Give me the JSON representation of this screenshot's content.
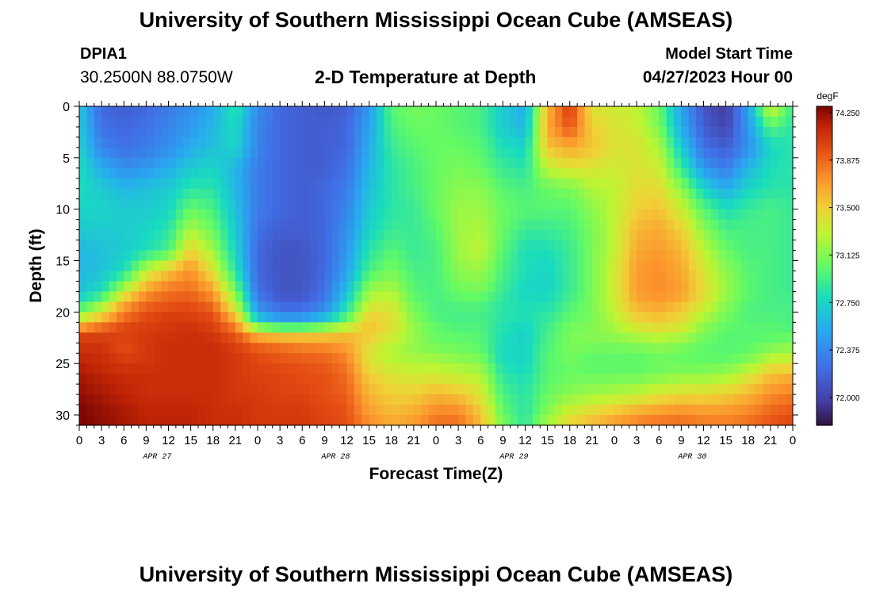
{
  "header": {
    "title": "University of Southern Mississippi Ocean Cube (AMSEAS)",
    "station_id": "DPIA1",
    "station_coords": "30.2500N  88.0750W",
    "plot_title": "2-D Temperature at Depth",
    "model_start_label": "Model Start Time",
    "model_start_value": "04/27/2023 Hour 00"
  },
  "footer": {
    "title": "University of Southern Mississippi Ocean Cube (AMSEAS)"
  },
  "chart_data": {
    "type": "heatmap",
    "title": "2-D Temperature at Depth",
    "xlabel": "Forecast Time(Z)",
    "ylabel": "Depth (ft)",
    "x_hours_range": [
      0,
      96
    ],
    "y_depth_range": [
      0,
      31
    ],
    "x_tick_labels": [
      "0",
      "3",
      "6",
      "9",
      "12",
      "15",
      "18",
      "21",
      "0",
      "3",
      "6",
      "9",
      "12",
      "15",
      "18",
      "21",
      "0",
      "3",
      "6",
      "9",
      "12",
      "15",
      "18",
      "21",
      "0",
      "3",
      "6",
      "9",
      "12",
      "15",
      "18",
      "21",
      "0"
    ],
    "date_labels": [
      {
        "label": "APR 27",
        "hour": 10.5
      },
      {
        "label": "APR 28",
        "hour": 34.5
      },
      {
        "label": "APR 29",
        "hour": 58.5
      },
      {
        "label": "APR 30",
        "hour": 82.5
      }
    ],
    "y_ticks": [
      0,
      5,
      10,
      15,
      20,
      25,
      30
    ],
    "colorbar": {
      "unit": "degF",
      "range": [
        71.78,
        74.3
      ],
      "ticks": [
        74.25,
        73.875,
        73.5,
        73.125,
        72.75,
        72.375,
        72.0
      ],
      "tick_labels": [
        "74.250",
        "73.875",
        "73.500",
        "73.125",
        "72.750",
        "72.375",
        "72.000"
      ]
    },
    "depths_ft": [
      0,
      2,
      4,
      6,
      8,
      10,
      12,
      14,
      16,
      18,
      19,
      20,
      21,
      22,
      23,
      24,
      25,
      26,
      28,
      30,
      31
    ],
    "hours": [
      0,
      3,
      6,
      9,
      12,
      15,
      18,
      21,
      24,
      27,
      30,
      33,
      36,
      39,
      42,
      45,
      48,
      51,
      54,
      57,
      60,
      63,
      66,
      69,
      72,
      75,
      78,
      81,
      84,
      87,
      90,
      93,
      96
    ],
    "temperature_degF": [
      [
        72.7,
        72.2,
        72.15,
        72.2,
        72.3,
        72.4,
        72.55,
        72.85,
        72.4,
        72.2,
        72.15,
        72.1,
        72.15,
        72.45,
        73.0,
        73.1,
        73.05,
        73.0,
        72.95,
        72.7,
        72.55,
        73.6,
        74.05,
        73.4,
        73.35,
        73.3,
        73.05,
        72.5,
        72.1,
        71.95,
        72.5,
        73.4,
        72.9
      ],
      [
        72.7,
        72.25,
        72.2,
        72.25,
        72.35,
        72.45,
        72.6,
        72.8,
        72.35,
        72.2,
        72.15,
        72.15,
        72.2,
        72.5,
        72.95,
        73.05,
        73.05,
        73.0,
        72.95,
        72.7,
        72.6,
        73.65,
        73.95,
        73.5,
        73.4,
        73.35,
        73.1,
        72.55,
        72.15,
        72.0,
        72.45,
        73.0,
        72.85
      ],
      [
        72.75,
        72.35,
        72.25,
        72.3,
        72.4,
        72.55,
        72.65,
        72.75,
        72.35,
        72.2,
        72.15,
        72.15,
        72.2,
        72.55,
        72.9,
        73.0,
        73.05,
        73.05,
        73.0,
        72.8,
        72.75,
        73.55,
        73.65,
        73.55,
        73.4,
        73.4,
        73.25,
        72.7,
        72.25,
        72.15,
        72.4,
        72.75,
        72.85
      ],
      [
        72.8,
        72.55,
        72.4,
        72.45,
        72.55,
        72.7,
        72.75,
        72.6,
        72.3,
        72.2,
        72.15,
        72.15,
        72.25,
        72.6,
        72.85,
        72.95,
        73.05,
        73.1,
        73.05,
        72.9,
        72.85,
        73.3,
        73.4,
        73.4,
        73.35,
        73.4,
        73.35,
        72.9,
        72.45,
        72.3,
        72.6,
        72.8,
        72.85
      ],
      [
        72.8,
        72.7,
        72.6,
        72.65,
        72.7,
        72.85,
        72.85,
        72.6,
        72.3,
        72.2,
        72.15,
        72.2,
        72.3,
        72.65,
        72.85,
        72.95,
        73.05,
        73.15,
        73.15,
        73.0,
        72.95,
        73.05,
        73.1,
        73.25,
        73.3,
        73.45,
        73.45,
        73.15,
        72.75,
        72.55,
        72.75,
        72.85,
        72.85
      ],
      [
        72.75,
        72.75,
        72.7,
        72.7,
        72.75,
        73.05,
        72.95,
        72.65,
        72.3,
        72.2,
        72.15,
        72.2,
        72.35,
        72.7,
        72.85,
        72.9,
        73.05,
        73.2,
        73.2,
        73.05,
        73.0,
        73.0,
        73.0,
        73.15,
        73.3,
        73.5,
        73.55,
        73.35,
        73.0,
        72.8,
        72.9,
        72.95,
        72.9
      ],
      [
        72.7,
        72.7,
        72.7,
        72.75,
        72.85,
        73.25,
        73.05,
        72.7,
        72.25,
        72.15,
        72.15,
        72.2,
        72.4,
        72.75,
        72.9,
        72.9,
        73.0,
        73.2,
        73.25,
        73.05,
        72.9,
        72.9,
        72.95,
        73.1,
        73.3,
        73.6,
        73.65,
        73.5,
        73.15,
        72.95,
        72.95,
        72.95,
        72.9
      ],
      [
        72.6,
        72.65,
        72.7,
        72.8,
        72.95,
        73.5,
        73.2,
        72.75,
        72.2,
        72.1,
        72.1,
        72.2,
        72.45,
        72.85,
        73.0,
        72.9,
        72.95,
        73.2,
        73.3,
        73.0,
        72.8,
        72.8,
        72.9,
        73.1,
        73.3,
        73.65,
        73.7,
        73.6,
        73.3,
        73.05,
        72.95,
        72.95,
        72.9
      ],
      [
        72.6,
        72.65,
        72.8,
        73.3,
        73.55,
        73.75,
        73.4,
        72.85,
        72.2,
        72.1,
        72.1,
        72.2,
        72.5,
        72.95,
        73.1,
        72.95,
        72.95,
        73.15,
        73.2,
        72.95,
        72.8,
        72.75,
        72.9,
        73.1,
        73.35,
        73.7,
        73.75,
        73.65,
        73.4,
        73.15,
        73.0,
        72.95,
        72.9
      ],
      [
        72.65,
        72.8,
        73.3,
        73.7,
        73.85,
        73.85,
        73.7,
        73.1,
        72.25,
        72.1,
        72.1,
        72.25,
        72.65,
        73.2,
        73.25,
        73.0,
        72.95,
        73.05,
        73.1,
        72.9,
        72.75,
        72.75,
        72.9,
        73.1,
        73.35,
        73.7,
        73.75,
        73.7,
        73.45,
        73.2,
        73.0,
        72.95,
        72.9
      ],
      [
        72.8,
        73.1,
        73.6,
        73.85,
        73.9,
        73.95,
        73.8,
        73.25,
        72.35,
        72.15,
        72.15,
        72.3,
        72.75,
        73.3,
        73.35,
        73.05,
        72.95,
        73.0,
        73.0,
        72.85,
        72.8,
        72.8,
        72.95,
        73.1,
        73.35,
        73.65,
        73.7,
        73.6,
        73.4,
        73.15,
        73.0,
        72.95,
        72.95
      ],
      [
        73.1,
        73.4,
        73.8,
        73.95,
        74.0,
        74.0,
        73.95,
        73.45,
        72.5,
        72.3,
        72.3,
        72.45,
        72.9,
        73.45,
        73.4,
        73.1,
        72.95,
        72.95,
        72.95,
        72.85,
        72.8,
        72.85,
        73.0,
        73.1,
        73.3,
        73.55,
        73.6,
        73.5,
        73.3,
        73.1,
        72.95,
        72.95,
        72.95
      ],
      [
        73.4,
        73.7,
        73.9,
        74.0,
        74.05,
        74.05,
        74.0,
        73.7,
        72.8,
        72.6,
        72.6,
        72.8,
        73.1,
        73.55,
        73.45,
        73.15,
        73.0,
        72.95,
        72.95,
        72.85,
        72.8,
        72.9,
        73.05,
        73.1,
        73.25,
        73.45,
        73.5,
        73.45,
        73.2,
        73.05,
        73.0,
        73.0,
        72.95
      ],
      [
        74.0,
        74.0,
        74.05,
        74.05,
        74.05,
        74.1,
        74.05,
        73.9,
        73.5,
        73.4,
        73.4,
        73.45,
        73.55,
        73.55,
        73.4,
        73.2,
        73.05,
        73.0,
        73.0,
        72.8,
        72.7,
        72.95,
        73.1,
        73.15,
        73.2,
        73.3,
        73.35,
        73.3,
        73.1,
        73.0,
        73.0,
        73.0,
        73.0
      ],
      [
        74.05,
        74.05,
        73.95,
        74.05,
        74.1,
        74.1,
        74.1,
        74.0,
        73.85,
        73.8,
        73.75,
        73.7,
        73.65,
        73.45,
        73.3,
        73.15,
        73.05,
        73.05,
        73.0,
        72.8,
        72.75,
        72.95,
        73.1,
        73.1,
        73.1,
        73.15,
        73.2,
        73.15,
        73.05,
        73.0,
        73.0,
        73.05,
        73.1
      ],
      [
        74.1,
        74.1,
        74.0,
        74.05,
        74.1,
        74.1,
        74.1,
        74.05,
        73.95,
        73.9,
        73.85,
        73.85,
        73.75,
        73.4,
        73.25,
        73.2,
        73.15,
        73.1,
        73.05,
        72.75,
        72.75,
        73.0,
        73.1,
        73.05,
        73.05,
        73.05,
        73.1,
        73.05,
        73.0,
        73.0,
        73.05,
        73.2,
        73.25
      ],
      [
        74.15,
        74.1,
        74.05,
        74.05,
        74.1,
        74.1,
        74.1,
        74.05,
        74.0,
        73.95,
        73.95,
        73.9,
        73.8,
        73.4,
        73.3,
        73.25,
        73.25,
        73.2,
        73.15,
        72.8,
        72.75,
        73.0,
        73.05,
        73.0,
        73.0,
        73.0,
        73.05,
        73.05,
        73.05,
        73.05,
        73.15,
        73.35,
        73.4
      ],
      [
        74.2,
        74.15,
        74.1,
        74.1,
        74.1,
        74.1,
        74.1,
        74.05,
        74.0,
        74.0,
        73.95,
        73.95,
        73.85,
        73.5,
        73.4,
        73.35,
        73.35,
        73.3,
        73.25,
        72.85,
        72.8,
        73.0,
        73.05,
        73.05,
        73.05,
        73.05,
        73.1,
        73.15,
        73.15,
        73.2,
        73.35,
        73.55,
        73.6
      ],
      [
        74.25,
        74.2,
        74.15,
        74.1,
        74.1,
        74.1,
        74.1,
        74.05,
        74.05,
        74.0,
        74.0,
        73.95,
        73.9,
        73.6,
        73.5,
        73.5,
        73.6,
        73.55,
        73.4,
        72.95,
        72.85,
        73.05,
        73.15,
        73.2,
        73.25,
        73.3,
        73.4,
        73.45,
        73.45,
        73.5,
        73.6,
        73.75,
        73.8
      ],
      [
        74.3,
        74.25,
        74.2,
        74.15,
        74.15,
        74.15,
        74.1,
        74.1,
        74.05,
        74.05,
        74.05,
        74.0,
        73.95,
        73.7,
        73.6,
        73.65,
        73.8,
        73.8,
        73.55,
        73.05,
        72.85,
        73.15,
        73.4,
        73.5,
        73.6,
        73.7,
        73.75,
        73.8,
        73.75,
        73.75,
        73.8,
        73.9,
        73.95
      ],
      [
        74.3,
        74.25,
        74.2,
        74.15,
        74.15,
        74.15,
        74.1,
        74.1,
        74.05,
        74.05,
        74.05,
        74.0,
        73.95,
        73.75,
        73.65,
        73.7,
        73.85,
        73.85,
        73.6,
        73.1,
        72.9,
        73.25,
        73.5,
        73.6,
        73.7,
        73.8,
        73.85,
        73.85,
        73.8,
        73.8,
        73.85,
        73.95,
        74.0
      ]
    ]
  }
}
